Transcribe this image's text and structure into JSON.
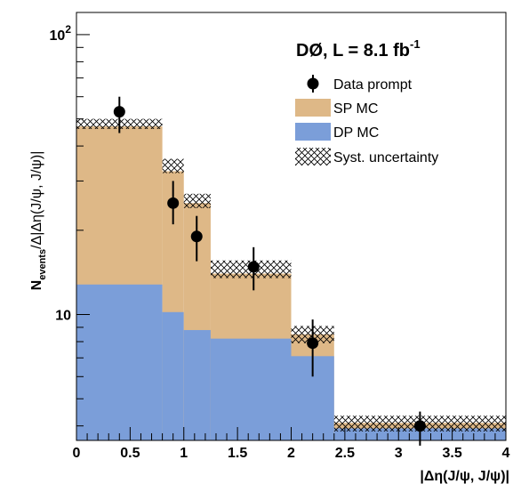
{
  "colors": {
    "sp_mc": "#deb887",
    "dp_mc": "#7b9ed9",
    "data": "#000000",
    "frame": "#000000"
  },
  "chart_data": {
    "type": "bar",
    "log_y": true,
    "xlim": [
      0,
      4
    ],
    "ylim": [
      3.55,
      120
    ],
    "grid": false,
    "legend_placement": "top-right",
    "annotation": {
      "main": "DØ, L = 8.1 fb",
      "sup": "-1"
    },
    "xlabel": "|Δη(J/ψ, J/ψ)|",
    "ylabel": {
      "base": "N",
      "sub": "events",
      "rest": "/Δ|Δη(J/ψ, J/ψ)|"
    },
    "x_ticks": [
      "0",
      "0.5",
      "1",
      "1.5",
      "2",
      "2.5",
      "3",
      "3.5",
      "4"
    ],
    "y_ticks": [
      {
        "base": "10",
        "sup": ""
      },
      {
        "base": "10",
        "sup": "2"
      }
    ],
    "bins": [
      {
        "x_low": 0.0,
        "x_high": 0.8,
        "dp": 12.8,
        "sp_plus_dp": 47.0,
        "syst_low": 46.0,
        "syst_high": 50.0
      },
      {
        "x_low": 0.8,
        "x_high": 1.0,
        "dp": 10.2,
        "sp_plus_dp": 32.5,
        "syst_low": 32.0,
        "syst_high": 36.0
      },
      {
        "x_low": 1.0,
        "x_high": 1.25,
        "dp": 8.8,
        "sp_plus_dp": 25.0,
        "syst_low": 24.0,
        "syst_high": 27.0
      },
      {
        "x_low": 1.25,
        "x_high": 2.0,
        "dp": 8.2,
        "sp_plus_dp": 14.0,
        "syst_low": 13.5,
        "syst_high": 15.6
      },
      {
        "x_low": 2.0,
        "x_high": 2.4,
        "dp": 7.1,
        "sp_plus_dp": 8.5,
        "syst_low": 7.9,
        "syst_high": 9.1
      },
      {
        "x_low": 2.4,
        "x_high": 4.0,
        "dp": 3.92,
        "sp_plus_dp": 4.1,
        "syst_low": 3.82,
        "syst_high": 4.35
      }
    ],
    "data_points": [
      {
        "x": 0.4,
        "y": 53.0,
        "err_low": 8.5,
        "err_high": 7.0
      },
      {
        "x": 0.9,
        "y": 25.0,
        "err_low": 4.0,
        "err_high": 5.0
      },
      {
        "x": 1.12,
        "y": 19.0,
        "err_low": 3.5,
        "err_high": 3.5
      },
      {
        "x": 1.65,
        "y": 14.8,
        "err_low": 2.6,
        "err_high": 2.6
      },
      {
        "x": 2.2,
        "y": 7.9,
        "err_low": 1.9,
        "err_high": 1.7
      },
      {
        "x": 3.2,
        "y": 4.0,
        "err_low": 0.6,
        "err_high": 0.5
      }
    ],
    "legend": [
      {
        "label": "Data prompt",
        "kind": "marker"
      },
      {
        "label": "SP MC",
        "kind": "sp"
      },
      {
        "label": "DP MC",
        "kind": "dp"
      },
      {
        "label": "Syst. uncertainty",
        "kind": "hatch"
      }
    ]
  }
}
